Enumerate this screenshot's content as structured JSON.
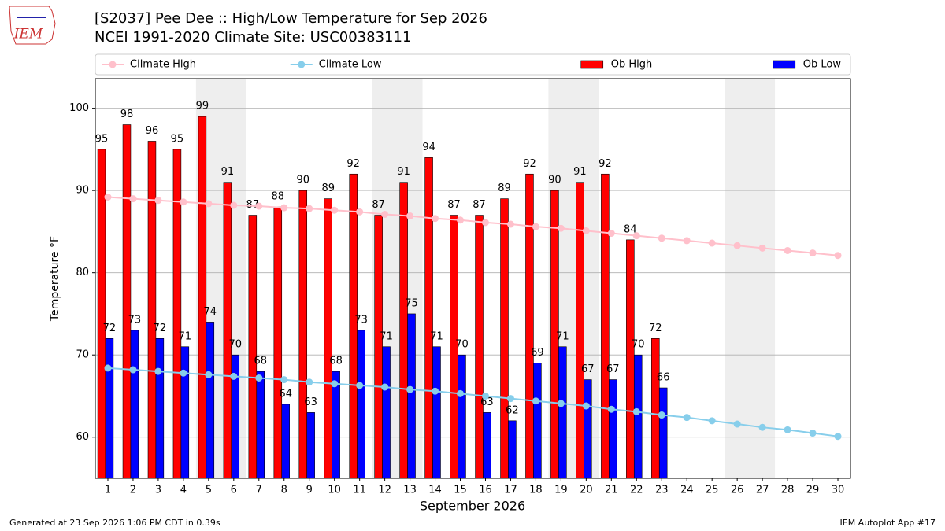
{
  "chart_data": {
    "type": "bar",
    "title": "[S2037] Pee Dee :: High/Low Temperature for Sep 2026",
    "subtitle": "NCEI 1991-2020 Climate Site: USC00383111",
    "logo_text": "IEM",
    "xlabel": "September 2026",
    "ylabel": "Temperature °F",
    "footer_left": "Generated at 23 Sep 2026 1:06 PM CDT in 0.39s",
    "footer_right": "IEM Autoplot App #17",
    "x": [
      1,
      2,
      3,
      4,
      5,
      6,
      7,
      8,
      9,
      10,
      11,
      12,
      13,
      14,
      15,
      16,
      17,
      18,
      19,
      20,
      21,
      22,
      23,
      24,
      25,
      26,
      27,
      28,
      29,
      30
    ],
    "xlim": [
      0.5,
      30.5
    ],
    "xticks": [
      1,
      2,
      3,
      4,
      5,
      6,
      7,
      8,
      9,
      10,
      11,
      12,
      13,
      14,
      15,
      16,
      17,
      18,
      19,
      20,
      21,
      22,
      23,
      24,
      25,
      26,
      27,
      28,
      29,
      30
    ],
    "ylim": [
      55,
      103.6
    ],
    "yticks": [
      60,
      70,
      80,
      90,
      100
    ],
    "grid": true,
    "shaded_days": [
      5,
      12,
      19,
      26
    ],
    "shade_color": "#eeeeee",
    "legend": "top",
    "series": [
      {
        "name": "Climate High",
        "type": "line",
        "color": "#ffc0cb",
        "values": [
          89.2,
          89.0,
          88.8,
          88.6,
          88.4,
          88.2,
          88.1,
          87.9,
          87.8,
          87.6,
          87.4,
          87.1,
          86.9,
          86.6,
          86.4,
          86.1,
          85.9,
          85.6,
          85.4,
          85.1,
          84.8,
          84.5,
          84.2,
          83.9,
          83.6,
          83.3,
          83.0,
          82.7,
          82.4,
          82.1
        ]
      },
      {
        "name": "Climate Low",
        "type": "line",
        "color": "#87ceeb",
        "values": [
          68.4,
          68.2,
          68.0,
          67.8,
          67.6,
          67.4,
          67.2,
          67.0,
          66.7,
          66.5,
          66.3,
          66.1,
          65.8,
          65.6,
          65.3,
          65.0,
          64.7,
          64.4,
          64.1,
          63.8,
          63.4,
          63.1,
          62.7,
          62.4,
          62.0,
          61.6,
          61.2,
          60.9,
          60.5,
          60.1
        ]
      },
      {
        "name": "Ob High",
        "type": "bar",
        "color": "#ff0000",
        "values": [
          95,
          98,
          96,
          95,
          99,
          91,
          87,
          88,
          90,
          89,
          92,
          87,
          91,
          94,
          87,
          87,
          89,
          92,
          90,
          91,
          92,
          84,
          72,
          null,
          null,
          null,
          null,
          null,
          null,
          null
        ]
      },
      {
        "name": "Ob Low",
        "type": "bar",
        "color": "#0000ff",
        "values": [
          72,
          73,
          72,
          71,
          74,
          70,
          68,
          64,
          63,
          68,
          73,
          71,
          75,
          71,
          70,
          63,
          62,
          69,
          71,
          67,
          67,
          70,
          66,
          null,
          null,
          null,
          null,
          null,
          null,
          null
        ]
      }
    ]
  }
}
